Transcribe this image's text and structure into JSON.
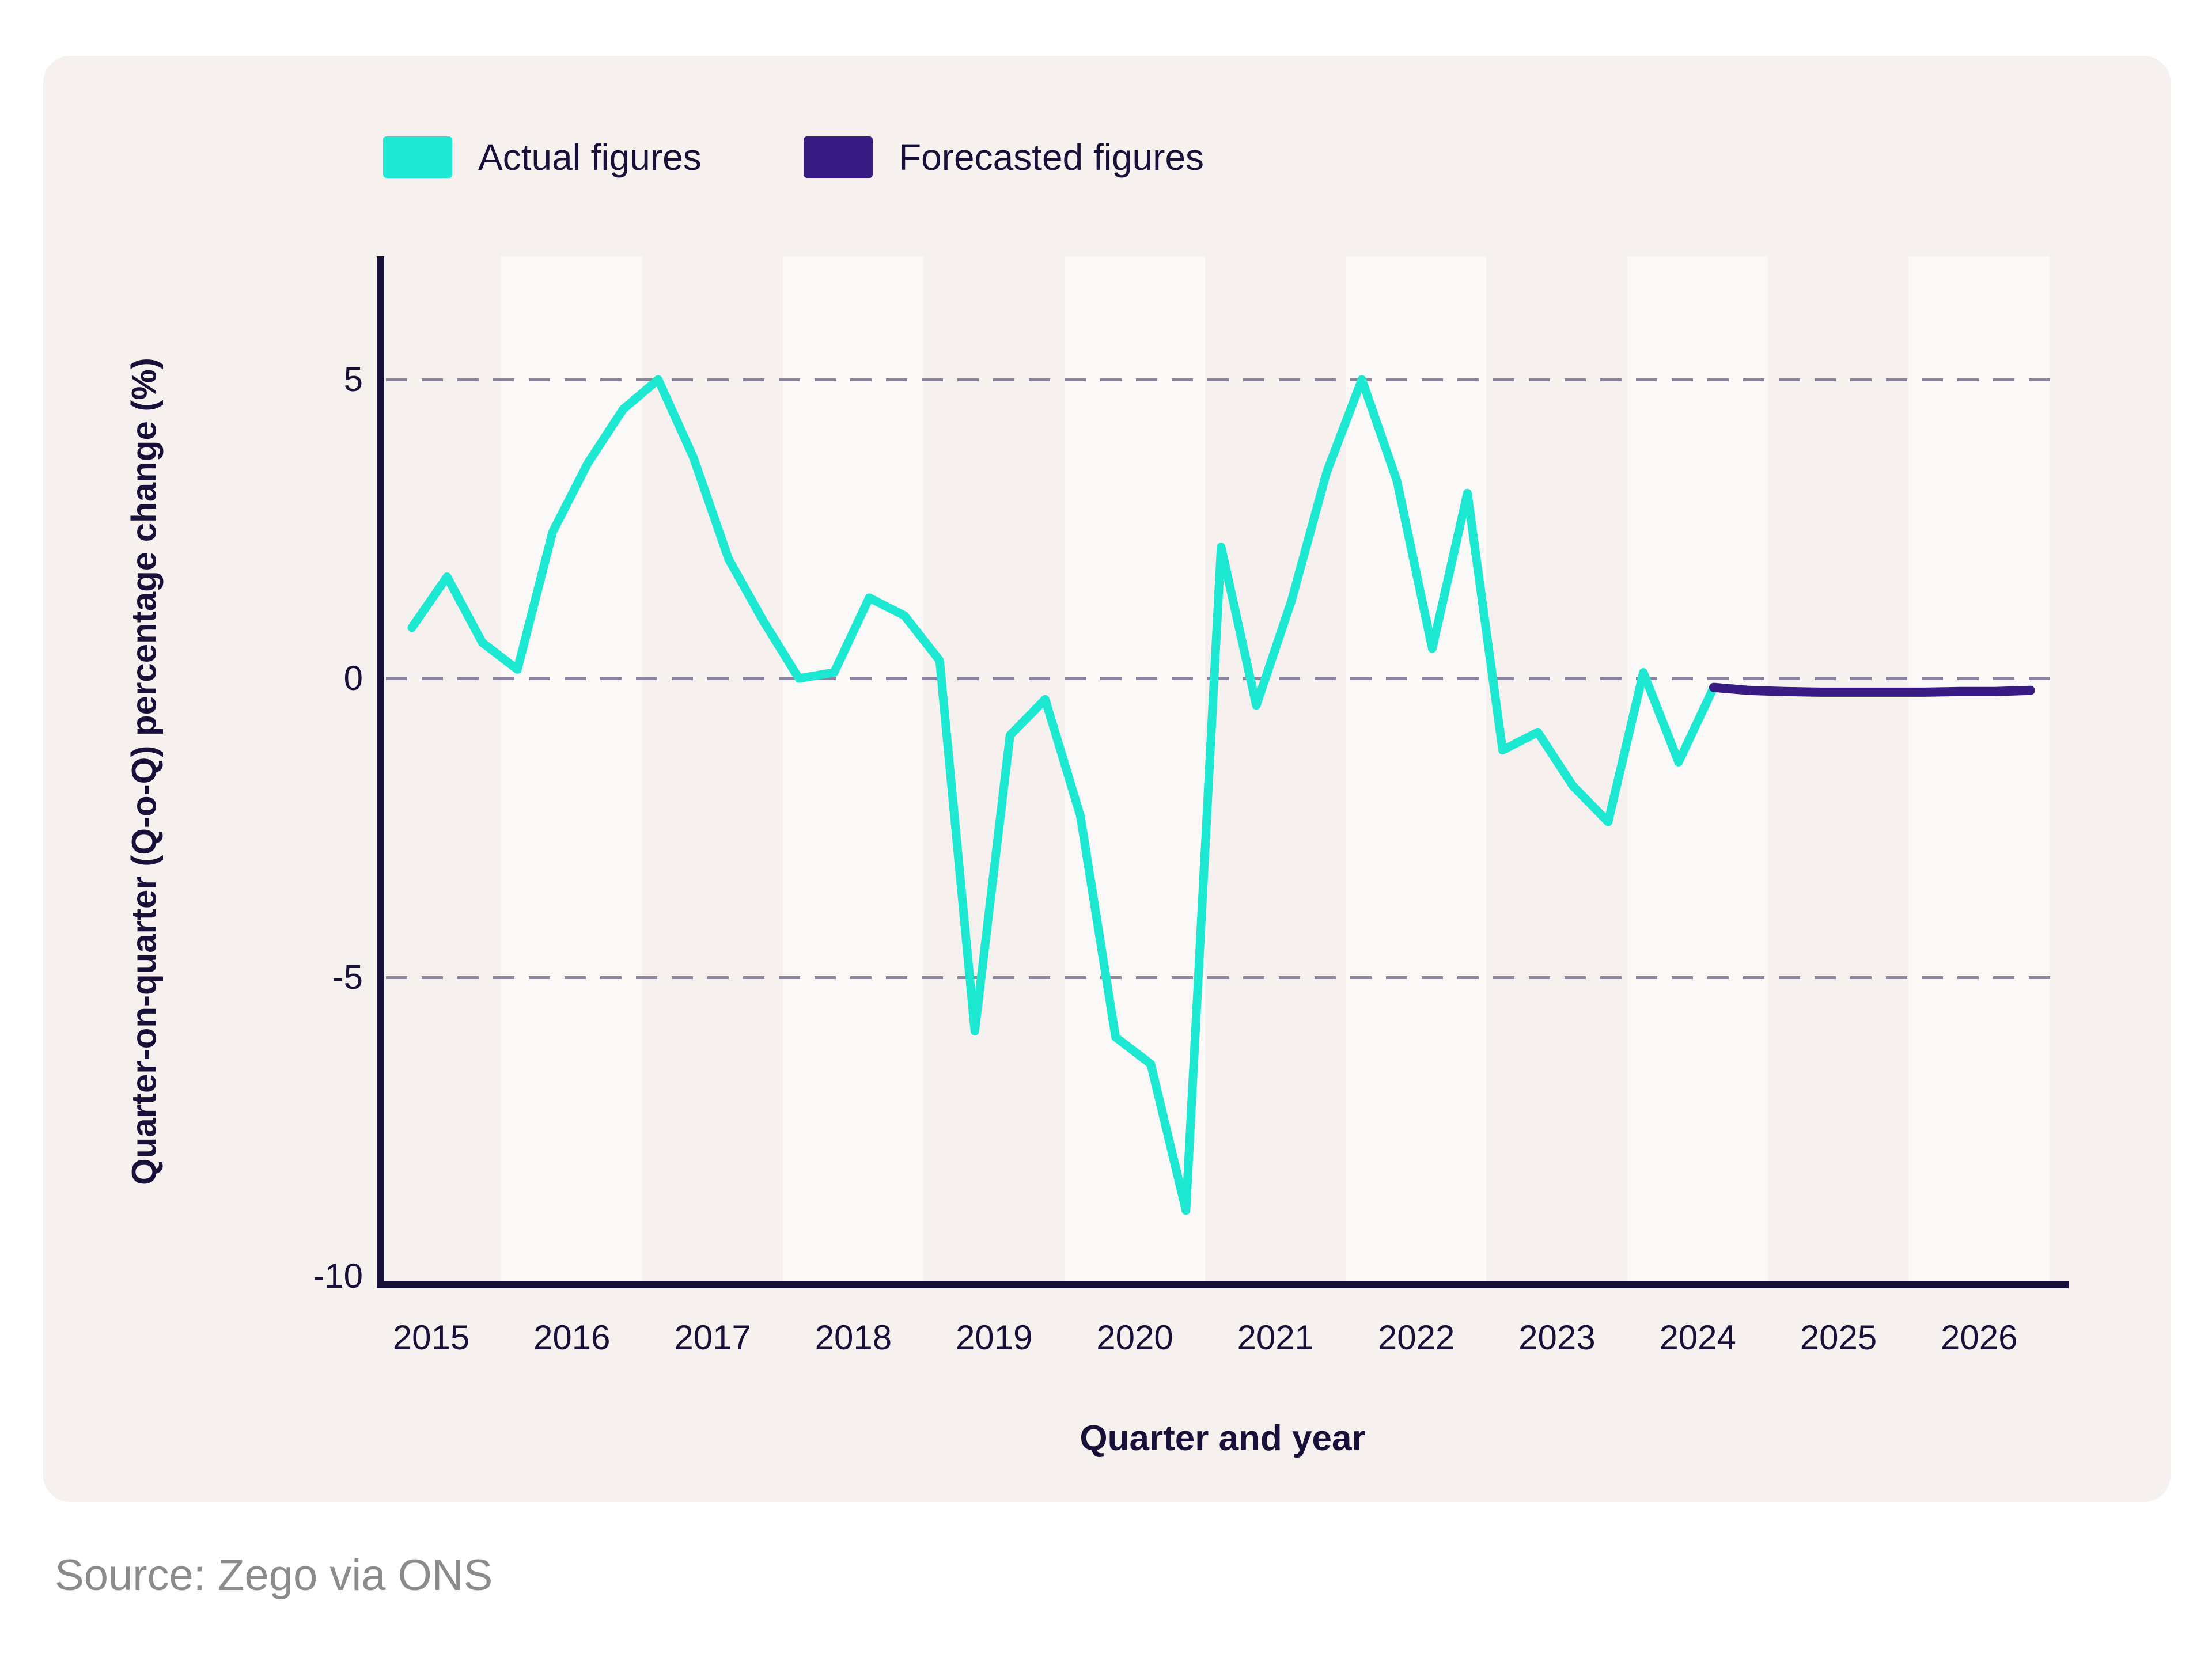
{
  "page": {
    "source_caption": "Source: Zego via ONS",
    "background_color": "#FFFFFF",
    "card_color": "#F6F1EE",
    "band_color": "#FBF9F8",
    "text_color": "#171038",
    "gridline_color": "#8B85A0"
  },
  "legend": {
    "items": [
      {
        "label": "Actual figures",
        "color": "#1DE9D2"
      },
      {
        "label": "Forecasted figures",
        "color": "#381C84"
      }
    ]
  },
  "chart_data": {
    "type": "line",
    "title": "",
    "xlabel": "Quarter and year",
    "ylabel": "Quarter-on-quarter (Q-o-Q) percentage change (%)",
    "x_tick_labels": [
      "2015",
      "2016",
      "2017",
      "2018",
      "2019",
      "2020",
      "2021",
      "2022",
      "2023",
      "2024",
      "2025",
      "2026"
    ],
    "y_ticks": [
      5,
      0,
      -5,
      -10
    ],
    "y_tick_labels": [
      "5",
      "0",
      "-5",
      "-10"
    ],
    "ylim": [
      -10.2,
      7.05
    ],
    "grid": "horizontal dashed lines at 5, 0 and -5",
    "legend_position": "top-left",
    "highlight_band_years": [
      "2016",
      "2018",
      "2020",
      "2022",
      "2024",
      "2026"
    ],
    "frequency": "quarterly",
    "series": [
      {
        "name": "Actual figures",
        "color": "#1DE9D2",
        "start": "2015 Q1",
        "start_index": 0,
        "values": [
          0.85,
          1.7,
          0.6,
          0.15,
          2.45,
          3.6,
          4.5,
          5.0,
          3.7,
          2.0,
          0.95,
          0.0,
          0.1,
          1.35,
          1.05,
          0.3,
          -5.9,
          -0.95,
          -0.35,
          -2.3,
          -6.0,
          -6.45,
          -8.9,
          2.2,
          -0.45,
          1.3,
          3.45,
          5.0,
          3.3,
          0.5,
          3.1,
          -1.2,
          -0.9,
          -1.8,
          -2.4,
          0.1,
          -1.4,
          -0.15
        ]
      },
      {
        "name": "Forecasted figures",
        "color": "#381C84",
        "start": "2024 Q2",
        "start_index": 37,
        "values": [
          -0.15,
          -0.2,
          -0.22,
          -0.23,
          -0.23,
          -0.23,
          -0.23,
          -0.22,
          -0.22,
          -0.2
        ]
      }
    ]
  }
}
